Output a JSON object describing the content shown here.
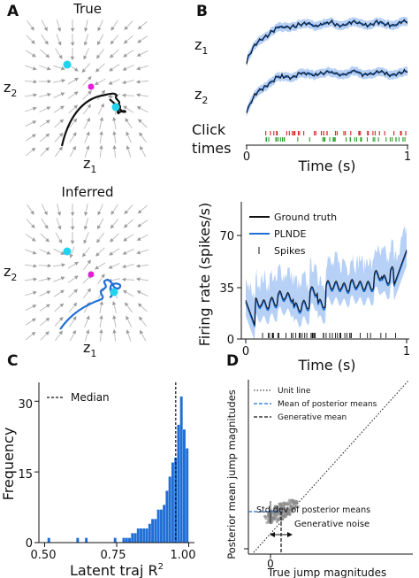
{
  "panels": {
    "A": {
      "label": "A",
      "top_title": "True",
      "bottom_title": "Inferred",
      "ylabel": "z",
      "ylabel_sub": "2",
      "xlabel": "z",
      "xlabel_sub": "1",
      "colors": {
        "stream": "#b8b8b8",
        "fixed_point": "#22d3ee",
        "saddle": "#e11fd6",
        "true_traj": "#111111",
        "inferred_traj": "#1f6fd6"
      }
    },
    "B": {
      "label": "B",
      "z1_label": "z",
      "z1_sub": "1",
      "z2_label": "z",
      "z2_sub": "2",
      "click_label_line1": "Click",
      "click_label_line2": "times",
      "top_xlabel": "Time (s)",
      "top_xticks": [
        "0",
        "1"
      ],
      "bottom_ylabel": "Firing rate (spikes/s)",
      "bottom_yticks": [
        "0",
        "35",
        "70"
      ],
      "bottom_xticks": [
        "0",
        "1"
      ],
      "bottom_xlabel": "Time (s)",
      "legend": [
        "Ground truth",
        "PLNDE",
        "Spikes"
      ],
      "colors": {
        "truth": "#111111",
        "model": "#1f6fd6",
        "band": "#a9c8f5",
        "click_right": "#d62728",
        "click_left": "#2ca02c"
      }
    },
    "C": {
      "label": "C",
      "ylabel": "Frequency",
      "xlabel": "Latent traj R",
      "xlabel_sup": "2",
      "legend": "Median",
      "bar_color": "#1f6fd6"
    },
    "D": {
      "label": "D",
      "ylabel": "Posterior mean jump magnitudes",
      "xlabel": "True jump magnitudes",
      "xtick": "0",
      "ytick": "0",
      "legend": [
        "Unit line",
        "Mean of posterior means",
        "Generative mean"
      ],
      "annot_std": "Std dev of posterior means",
      "annot_noise": "Generative noise",
      "colors": {
        "points": "#8a8a8a",
        "mean_line": "#1f6fd6",
        "annot_std": "#1f6fd6"
      }
    }
  },
  "chart_data": [
    {
      "type": "bar",
      "title": "",
      "xlabel": "Latent traj R^2",
      "ylabel": "Frequency",
      "xticks": [
        "0.50",
        "0.75",
        "1.00"
      ],
      "yticks": [
        "0",
        "15",
        "30"
      ],
      "xlim": [
        0.48,
        1.02
      ],
      "ylim": [
        0,
        34
      ],
      "bin_width": 0.01,
      "bins": [
        0.5,
        0.51,
        0.52,
        0.53,
        0.54,
        0.55,
        0.56,
        0.57,
        0.58,
        0.59,
        0.6,
        0.61,
        0.62,
        0.63,
        0.64,
        0.65,
        0.66,
        0.67,
        0.68,
        0.69,
        0.7,
        0.71,
        0.72,
        0.73,
        0.74,
        0.75,
        0.76,
        0.77,
        0.78,
        0.79,
        0.8,
        0.81,
        0.82,
        0.83,
        0.84,
        0.85,
        0.86,
        0.87,
        0.88,
        0.89,
        0.9,
        0.91,
        0.92,
        0.93,
        0.94,
        0.95,
        0.96,
        0.97,
        0.98,
        0.99
      ],
      "values": [
        0,
        1,
        0,
        0,
        0,
        0,
        0,
        0,
        0,
        0,
        0,
        1,
        0,
        0,
        1,
        0,
        0,
        0,
        0,
        0,
        0,
        0,
        0,
        0,
        1,
        0,
        0,
        1,
        1,
        1,
        2,
        2,
        3,
        3,
        3,
        3,
        4,
        5,
        5,
        7,
        7,
        8,
        11,
        14,
        17,
        18,
        25,
        31,
        24,
        20
      ],
      "median": 0.955
    },
    {
      "type": "scatter",
      "xlabel": "True jump magnitudes",
      "ylabel": "Posterior mean jump magnitudes",
      "xticks": [
        "0"
      ],
      "yticks": [
        "0"
      ]
    }
  ]
}
